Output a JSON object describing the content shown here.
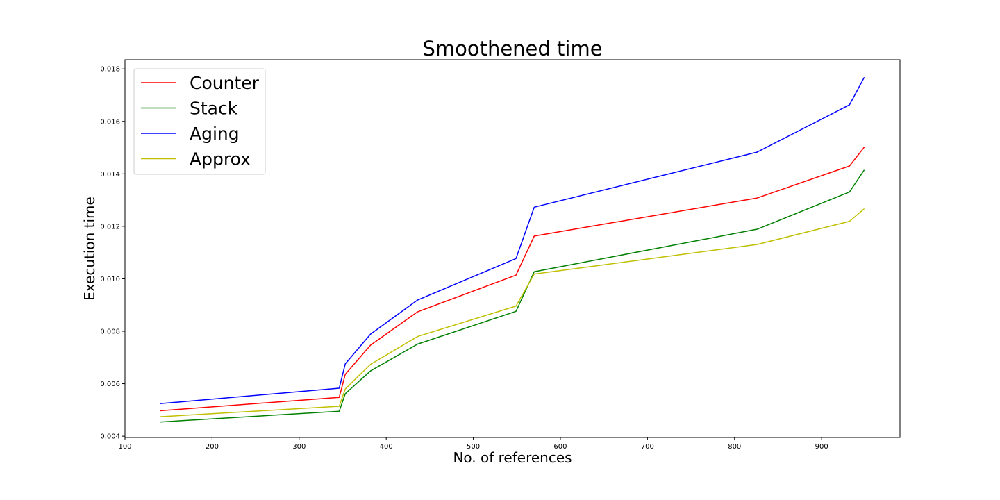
{
  "chart_data": {
    "type": "line",
    "title": "Smoothened time",
    "xlabel": "No. of references",
    "ylabel": "Execution time",
    "xlim": [
      100,
      990
    ],
    "ylim": [
      0.00395,
      0.01835
    ],
    "xticks": [
      100,
      200,
      300,
      400,
      500,
      600,
      700,
      800,
      900
    ],
    "xtick_labels": [
      "100",
      "200",
      "300",
      "400",
      "500",
      "600",
      "700",
      "800",
      "900"
    ],
    "yticks": [
      0.004,
      0.006,
      0.008,
      0.01,
      0.012,
      0.014,
      0.016,
      0.018
    ],
    "ytick_labels": [
      "0.004",
      "0.006",
      "0.008",
      "0.010",
      "0.012",
      "0.014",
      "0.016",
      "0.018"
    ],
    "grid": false,
    "legend_position": "top-left",
    "x": [
      140,
      346,
      353,
      382,
      436,
      549,
      570,
      826,
      932,
      949
    ],
    "series": [
      {
        "name": "Counter",
        "color": "#ff0000",
        "values": [
          0.00497,
          0.00548,
          0.00636,
          0.00747,
          0.00874,
          0.01014,
          0.01163,
          0.01308,
          0.0143,
          0.01502
        ]
      },
      {
        "name": "Stack",
        "color": "#008000",
        "values": [
          0.00454,
          0.00495,
          0.00562,
          0.00649,
          0.00751,
          0.00876,
          0.01027,
          0.01189,
          0.01331,
          0.01415
        ]
      },
      {
        "name": "Aging",
        "color": "#0000ff",
        "values": [
          0.00524,
          0.00583,
          0.00676,
          0.00789,
          0.00919,
          0.01077,
          0.01273,
          0.01483,
          0.01663,
          0.01768
        ]
      },
      {
        "name": "Approx",
        "color": "#bfbf00",
        "values": [
          0.00474,
          0.00514,
          0.0058,
          0.00674,
          0.0078,
          0.00896,
          0.01018,
          0.01131,
          0.01219,
          0.01267
        ]
      }
    ]
  }
}
